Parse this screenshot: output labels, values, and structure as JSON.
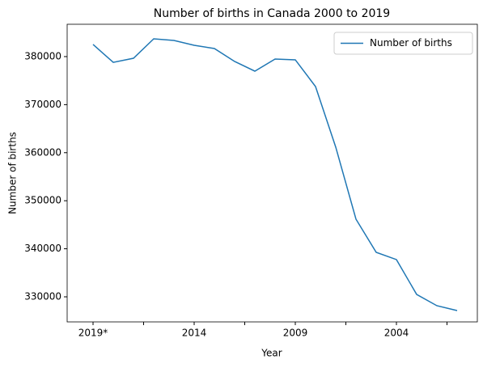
{
  "chart_data": {
    "type": "line",
    "title": "Number of births in Canada 2000 to 2019",
    "x_label": "Year",
    "y_label": "Number of births",
    "categories": [
      "2019*",
      null,
      null,
      null,
      null,
      "2014",
      null,
      null,
      null,
      null,
      "2009",
      null,
      null,
      null,
      null,
      "2004",
      null,
      null,
      null
    ],
    "series": [
      {
        "name": "Number of births",
        "color": "#1f77b4",
        "values": [
          382525,
          378800,
          379660,
          383700,
          383370,
          382360,
          381680,
          378990,
          376970,
          379500,
          379330,
          373770,
          361150,
          346160,
          339260,
          337750,
          330500,
          328150,
          327140
        ]
      }
    ],
    "ylim": [
      324780,
      386730
    ],
    "yticks": [
      330000,
      340000,
      350000,
      360000,
      370000,
      380000
    ],
    "legend": "upper right"
  }
}
